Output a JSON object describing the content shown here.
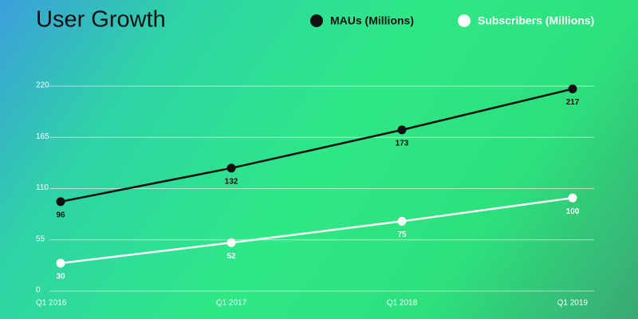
{
  "chart_data": {
    "type": "line",
    "title": "User Growth",
    "categories": [
      "Q1 2016",
      "Q1 2017",
      "Q1 2018",
      "Q1 2019"
    ],
    "series": [
      {
        "name": "MAUs (Millions)",
        "color": "#111111",
        "values": [
          96,
          132,
          173,
          217
        ]
      },
      {
        "name": "Subscribers (Millions)",
        "color": "#ffffff",
        "values": [
          30,
          52,
          75,
          100
        ]
      }
    ],
    "ylim": [
      0,
      220
    ],
    "yticks": [
      0,
      55,
      110,
      165,
      220
    ],
    "grid": true
  }
}
